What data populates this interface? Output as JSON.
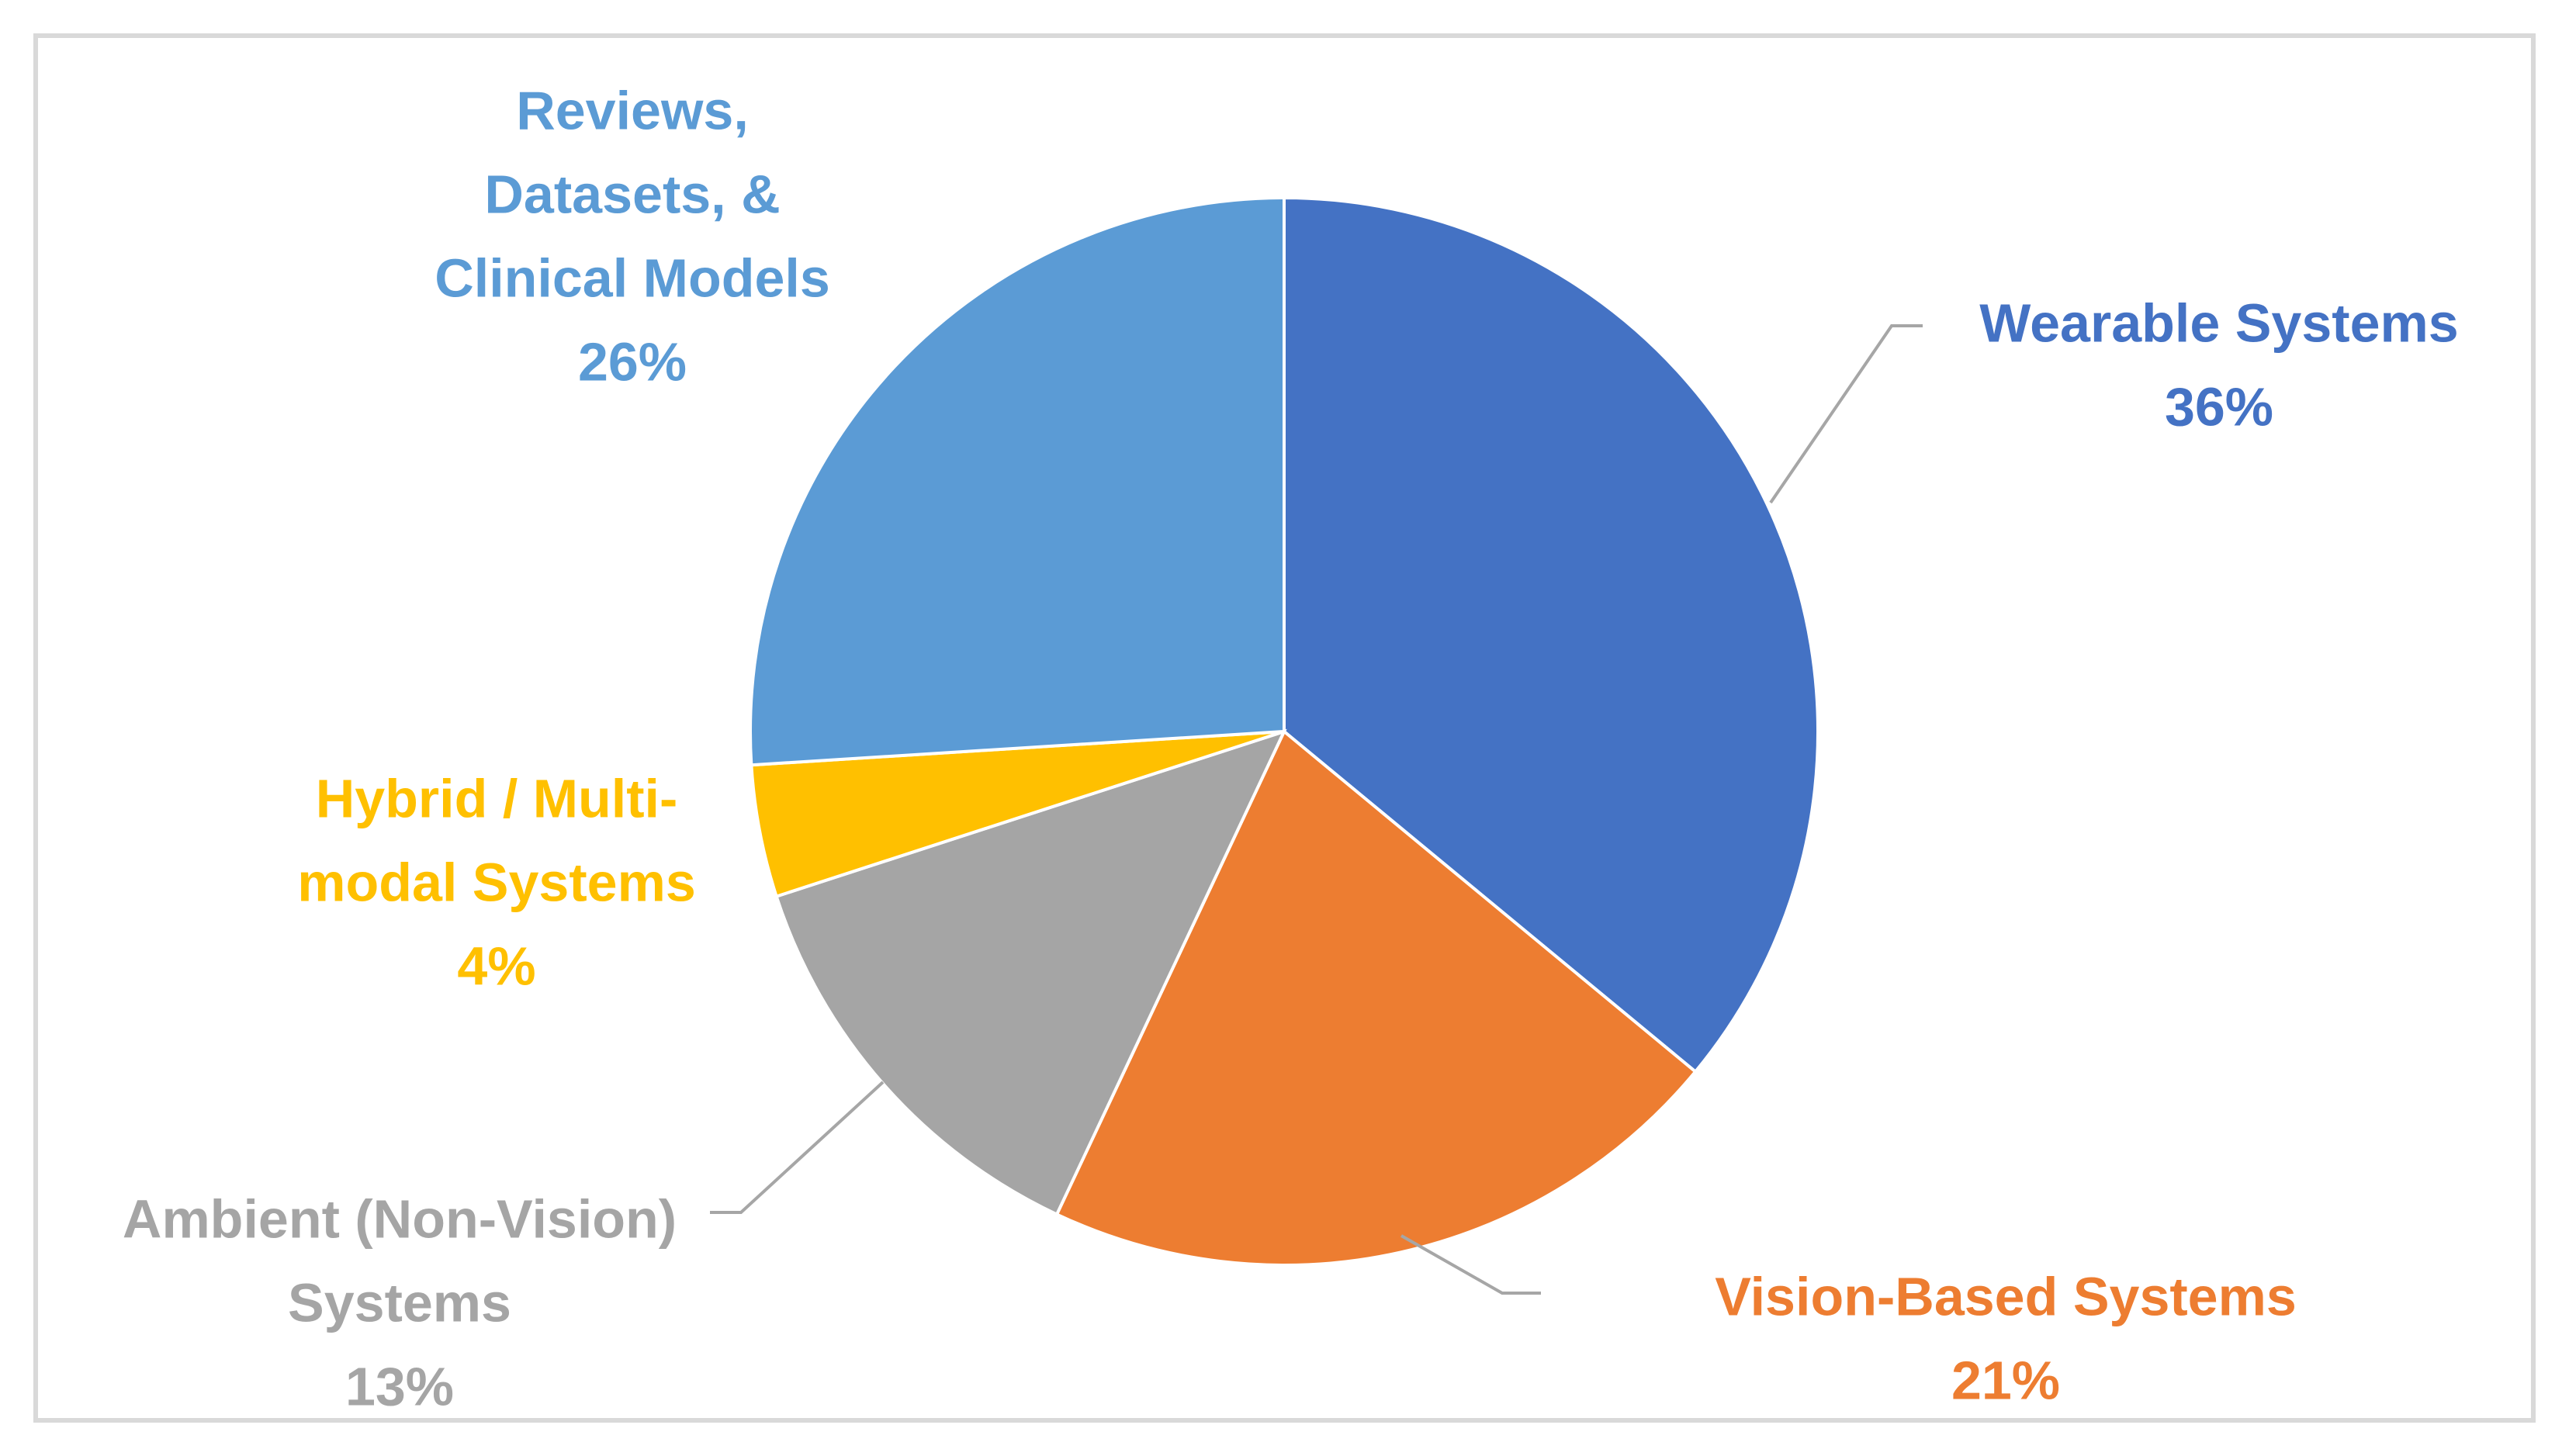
{
  "chart_data": {
    "type": "pie",
    "title": "",
    "start_angle_deg": 0,
    "direction": "clockwise",
    "slices": [
      {
        "label_lines": [
          "Wearable Systems"
        ],
        "percent_label": "36%",
        "value": 36,
        "color": "#4472C4"
      },
      {
        "label_lines": [
          "Vision-Based Systems"
        ],
        "percent_label": "21%",
        "value": 21,
        "color": "#ED7D31"
      },
      {
        "label_lines": [
          "Ambient (Non-Vision)",
          "Systems"
        ],
        "percent_label": "13%",
        "value": 13,
        "color": "#A5A5A5"
      },
      {
        "label_lines": [
          "Hybrid / Multi-",
          "modal Systems"
        ],
        "percent_label": "4%",
        "value": 4,
        "color": "#FFC000"
      },
      {
        "label_lines": [
          "Reviews,",
          "Datasets, &",
          "Clinical Models"
        ],
        "percent_label": "26%",
        "value": 26,
        "color": "#5B9BD5"
      }
    ],
    "leader_line_color": "#A6A6A6",
    "frame_color": "#D9D9D9"
  }
}
